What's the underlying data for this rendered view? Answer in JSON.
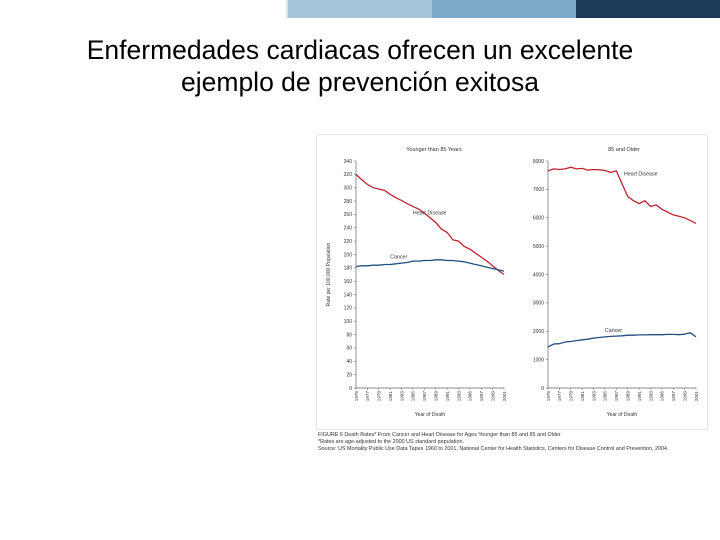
{
  "header": {
    "bar_colors": [
      "#ffffff",
      "#d4e3ee",
      "#a6c4da",
      "#7fa9c8",
      "#1f3b5a"
    ]
  },
  "slide": {
    "title_line1": "Enfermedades cardiacas ofrecen un excelente",
    "title_line2": "ejemplo de prevención exitosa"
  },
  "caption": {
    "line1": "FIGURE 6   Death Rates* From Cancer and Heart Disease for Ages Younger than 85 and 85 and Older",
    "line2": "*Rates are age-adjusted to the 2000 US standard population.",
    "line3": "Source: US Mortality Public Use Data Tapes 1960 to 2001, National Center for Health Statistics, Centers for Disease Control and Prevention, 2004."
  },
  "chart_data": [
    {
      "type": "line",
      "title": "Younger than 85 Years",
      "xlabel": "Year of Death",
      "ylabel": "Rate per 100,000 Population",
      "ylim": [
        0,
        340
      ],
      "yticks": [
        0,
        20,
        40,
        60,
        80,
        100,
        120,
        140,
        160,
        180,
        200,
        220,
        240,
        260,
        280,
        300,
        320,
        340
      ],
      "x_tick_labels": [
        "1975",
        "1977",
        "1979",
        "1981",
        "1983",
        "1985",
        "1987",
        "1989",
        "1991",
        "1993",
        "1995",
        "1997",
        "1999",
        "2001"
      ],
      "x": [
        1975,
        1976,
        1977,
        1978,
        1979,
        1980,
        1981,
        1982,
        1983,
        1984,
        1985,
        1986,
        1987,
        1988,
        1989,
        1990,
        1991,
        1992,
        1993,
        1994,
        1995,
        1996,
        1997,
        1998,
        1999,
        2000,
        2001
      ],
      "series": [
        {
          "name": "Heart Disease",
          "color": "#c0232f",
          "values": [
            320,
            312,
            305,
            300,
            298,
            296,
            290,
            285,
            281,
            276,
            272,
            268,
            262,
            255,
            248,
            238,
            233,
            222,
            220,
            212,
            208,
            202,
            196,
            190,
            183,
            176,
            170
          ]
        },
        {
          "name": "Cancer",
          "color": "#1f4f7f",
          "values": [
            182,
            183,
            183,
            184,
            184,
            185,
            185,
            186,
            187,
            188,
            190,
            190,
            191,
            191,
            192,
            192,
            191,
            191,
            190,
            189,
            187,
            185,
            183,
            181,
            179,
            177,
            175
          ]
        }
      ]
    },
    {
      "type": "line",
      "title": "85 and Older",
      "xlabel": "Year of Death",
      "ylabel": "",
      "ylim": [
        0,
        8000
      ],
      "yticks": [
        0,
        1000,
        2000,
        3000,
        4000,
        5000,
        6000,
        7000,
        8000
      ],
      "x_tick_labels": [
        "1975",
        "1977",
        "1979",
        "1981",
        "1983",
        "1985",
        "1987",
        "1989",
        "1991",
        "1993",
        "1995",
        "1997",
        "1999",
        "2001"
      ],
      "x": [
        1975,
        1976,
        1977,
        1978,
        1979,
        1980,
        1981,
        1982,
        1983,
        1984,
        1985,
        1986,
        1987,
        1988,
        1989,
        1990,
        1991,
        1992,
        1993,
        1994,
        1995,
        1996,
        1997,
        1998,
        1999,
        2000,
        2001
      ],
      "series": [
        {
          "name": "Heart Disease",
          "color": "#c0232f",
          "values": [
            7650,
            7720,
            7700,
            7720,
            7780,
            7720,
            7740,
            7680,
            7700,
            7690,
            7670,
            7600,
            7650,
            7200,
            6750,
            6600,
            6500,
            6600,
            6400,
            6450,
            6300,
            6200,
            6100,
            6050,
            6000,
            5900,
            5800
          ]
        },
        {
          "name": "Cancer",
          "color": "#1f4f7f",
          "values": [
            1450,
            1550,
            1560,
            1620,
            1640,
            1670,
            1700,
            1720,
            1760,
            1780,
            1800,
            1820,
            1830,
            1840,
            1860,
            1860,
            1870,
            1870,
            1880,
            1880,
            1880,
            1890,
            1890,
            1880,
            1900,
            1950,
            1800
          ]
        }
      ]
    }
  ]
}
